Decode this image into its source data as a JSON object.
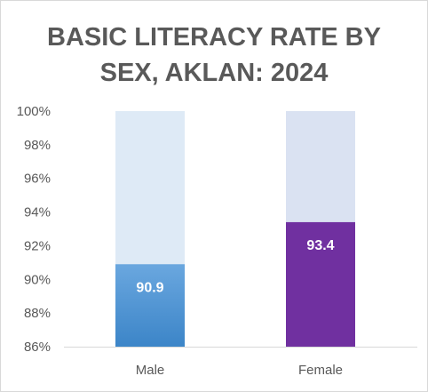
{
  "chart_data": {
    "type": "bar",
    "title_lines": [
      "BASIC LITERACY RATE BY",
      "SEX, AKLAN: 2024"
    ],
    "categories": [
      "Male",
      "Female"
    ],
    "values": [
      90.9,
      93.4
    ],
    "data_labels": [
      "90.9",
      "93.4"
    ],
    "ylim": [
      86,
      100
    ],
    "y_ticks": [
      86,
      88,
      90,
      92,
      94,
      96,
      98,
      100
    ],
    "y_tick_labels": [
      "86%",
      "88%",
      "90%",
      "92%",
      "94%",
      "96%",
      "98%",
      "100%"
    ],
    "xlabel": "",
    "ylabel": "",
    "grid": false,
    "legend": "none",
    "colors": {
      "male_bar_top": "#6aa7df",
      "male_bar_bottom": "#3c85c8",
      "male_track": "#deeaf6",
      "female_bar": "#7030a0",
      "female_track": "#dae2f2",
      "axis": "#d9d9d9",
      "text": "#595959"
    }
  }
}
